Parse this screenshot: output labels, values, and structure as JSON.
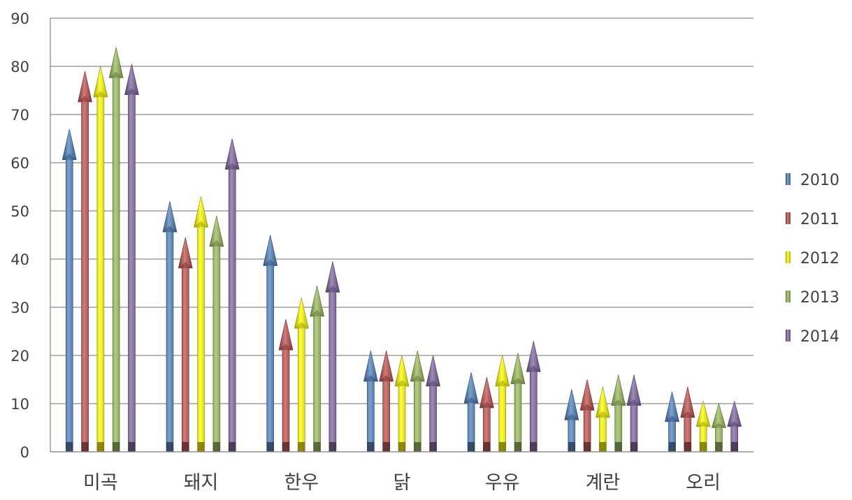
{
  "chart_data": {
    "type": "bar",
    "title": "",
    "xlabel": "",
    "ylabel": "",
    "ylim": [
      0,
      90
    ],
    "y_ticks": [
      0,
      10,
      20,
      30,
      40,
      50,
      60,
      70,
      80,
      90
    ],
    "grid": true,
    "legend_position": "right",
    "categories": [
      "미곡",
      "돼지",
      "한우",
      "닭",
      "우유",
      "계란",
      "오리"
    ],
    "series": [
      {
        "name": "2010",
        "color": "#4F81BD",
        "values": [
          67,
          52,
          45,
          21,
          16.5,
          13,
          12.5
        ]
      },
      {
        "name": "2011",
        "color": "#C0504D",
        "values": [
          79,
          44.5,
          27.5,
          21,
          15.5,
          15,
          13.5
        ]
      },
      {
        "name": "2012",
        "color": "#FFFF00",
        "values": [
          80,
          53,
          32,
          20,
          20,
          13.5,
          10.5
        ]
      },
      {
        "name": "2013",
        "color": "#9BBB59",
        "values": [
          84,
          49,
          34.5,
          21,
          20.5,
          16,
          10
        ]
      },
      {
        "name": "2014",
        "color": "#8064A2",
        "values": [
          80.5,
          65,
          39.5,
          20,
          23,
          16,
          10.5
        ]
      }
    ]
  }
}
